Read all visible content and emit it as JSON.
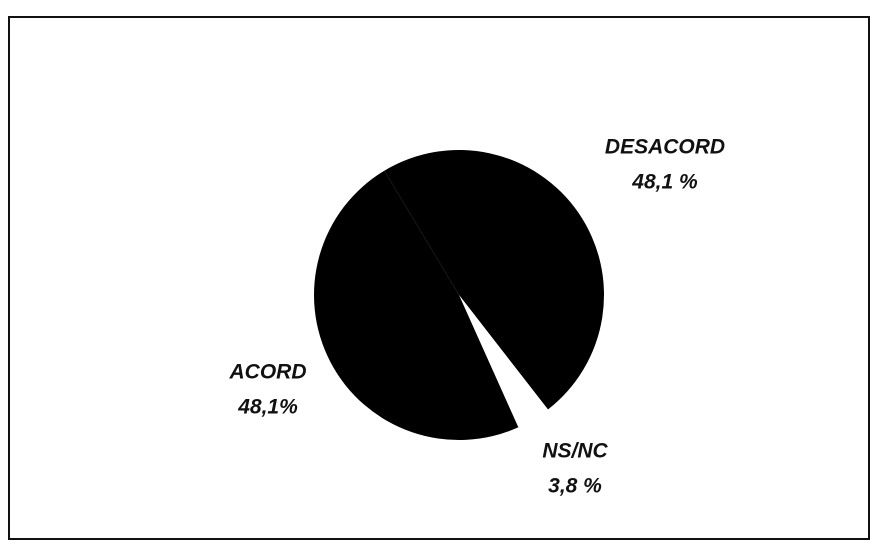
{
  "chart_data": {
    "type": "pie",
    "categories": [
      "DESACORD",
      "NS/NC",
      "ACORD"
    ],
    "values": [
      48.1,
      3.8,
      48.1
    ],
    "value_labels": [
      "48,1 %",
      "3,8 %",
      "48,1%"
    ],
    "colors": [
      "#000000",
      "#ffffff",
      "#000000"
    ]
  }
}
